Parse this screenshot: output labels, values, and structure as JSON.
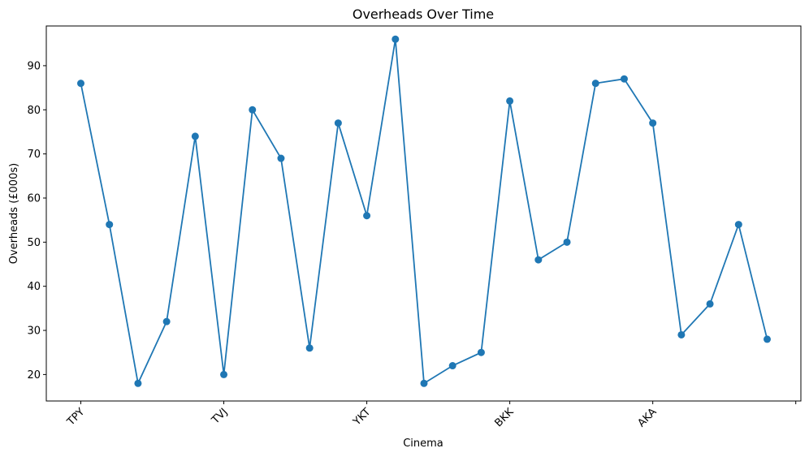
{
  "chart_data": {
    "type": "line",
    "title": "Overheads Over Time",
    "xlabel": "Cinema",
    "ylabel": "Overheads (£000s)",
    "x_tick_labels": [
      "TPY",
      "TVJ",
      "YKT",
      "BKK",
      "AKA",
      ""
    ],
    "series": [
      {
        "values": [
          86,
          54,
          18,
          32,
          74,
          20,
          80,
          69,
          26,
          77,
          56,
          96,
          18,
          22,
          25,
          82,
          46,
          50,
          86,
          87,
          77,
          29,
          36,
          54,
          28
        ]
      }
    ],
    "y_ticks": [
      20,
      30,
      40,
      50,
      60,
      70,
      80,
      90
    ],
    "ylim": [
      14,
      99
    ],
    "grid": false,
    "color": "#1f77b4"
  }
}
